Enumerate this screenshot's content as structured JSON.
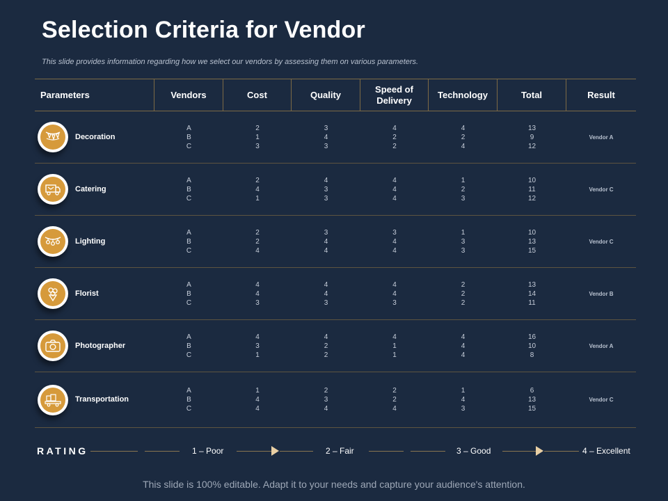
{
  "title": "Selection Criteria for Vendor",
  "subtitle": "This slide provides information regarding how we select our vendors by assessing them on various parameters.",
  "headers": [
    "Parameters",
    "Vendors",
    "Cost",
    "Quality",
    "Speed of Delivery",
    "Technology",
    "Total",
    "Result"
  ],
  "rows": [
    {
      "name": "Decoration",
      "icon": "bunting-icon",
      "vendors": [
        "A",
        "B",
        "C"
      ],
      "cost": [
        "2",
        "1",
        "3"
      ],
      "quality": [
        "3",
        "4",
        "3"
      ],
      "speed": [
        "4",
        "2",
        "2"
      ],
      "technology": [
        "4",
        "2",
        "4"
      ],
      "total": [
        "13",
        "9",
        "12"
      ],
      "result": "Vendor A"
    },
    {
      "name": "Catering",
      "icon": "food-truck-icon",
      "vendors": [
        "A",
        "B",
        "C"
      ],
      "cost": [
        "2",
        "4",
        "1"
      ],
      "quality": [
        "4",
        "3",
        "3"
      ],
      "speed": [
        "4",
        "4",
        "4"
      ],
      "technology": [
        "1",
        "2",
        "3"
      ],
      "total": [
        "10",
        "11",
        "12"
      ],
      "result": "Vendor C"
    },
    {
      "name": "Lighting",
      "icon": "string-lights-icon",
      "vendors": [
        "A",
        "B",
        "C"
      ],
      "cost": [
        "2",
        "2",
        "4"
      ],
      "quality": [
        "3",
        "4",
        "4"
      ],
      "speed": [
        "3",
        "4",
        "4"
      ],
      "technology": [
        "1",
        "3",
        "3"
      ],
      "total": [
        "10",
        "13",
        "15"
      ],
      "result": "Vendor C"
    },
    {
      "name": "Florist",
      "icon": "flower-bouquet-icon",
      "vendors": [
        "A",
        "B",
        "C"
      ],
      "cost": [
        "4",
        "4",
        "3"
      ],
      "quality": [
        "4",
        "4",
        "3"
      ],
      "speed": [
        "4",
        "4",
        "3"
      ],
      "technology": [
        "2",
        "2",
        "2"
      ],
      "total": [
        "13",
        "14",
        "11"
      ],
      "result": "Vendor B"
    },
    {
      "name": "Photographer",
      "icon": "camera-icon",
      "vendors": [
        "A",
        "B",
        "C"
      ],
      "cost": [
        "4",
        "3",
        "1"
      ],
      "quality": [
        "4",
        "2",
        "2"
      ],
      "speed": [
        "4",
        "1",
        "1"
      ],
      "technology": [
        "4",
        "4",
        "4"
      ],
      "total": [
        "16",
        "10",
        "8"
      ],
      "result": "Vendor A"
    },
    {
      "name": "Transportation",
      "icon": "cargo-truck-icon",
      "vendors": [
        "A",
        "B",
        "C"
      ],
      "cost": [
        "1",
        "4",
        "4"
      ],
      "quality": [
        "2",
        "3",
        "4"
      ],
      "speed": [
        "2",
        "2",
        "4"
      ],
      "technology": [
        "1",
        "4",
        "3"
      ],
      "total": [
        "6",
        "13",
        "15"
      ],
      "result": "Vendor C"
    }
  ],
  "rating": {
    "label": "RATING",
    "levels": [
      "1 – Poor",
      "2 – Fair",
      "3 – Good",
      "4 – Excellent"
    ]
  },
  "footer": "This slide is 100% editable. Adapt it to your needs and capture your audience's attention.",
  "colors": {
    "background": "#1b2a40",
    "accent": "#d69a3b",
    "divider": "#7d6a45"
  }
}
